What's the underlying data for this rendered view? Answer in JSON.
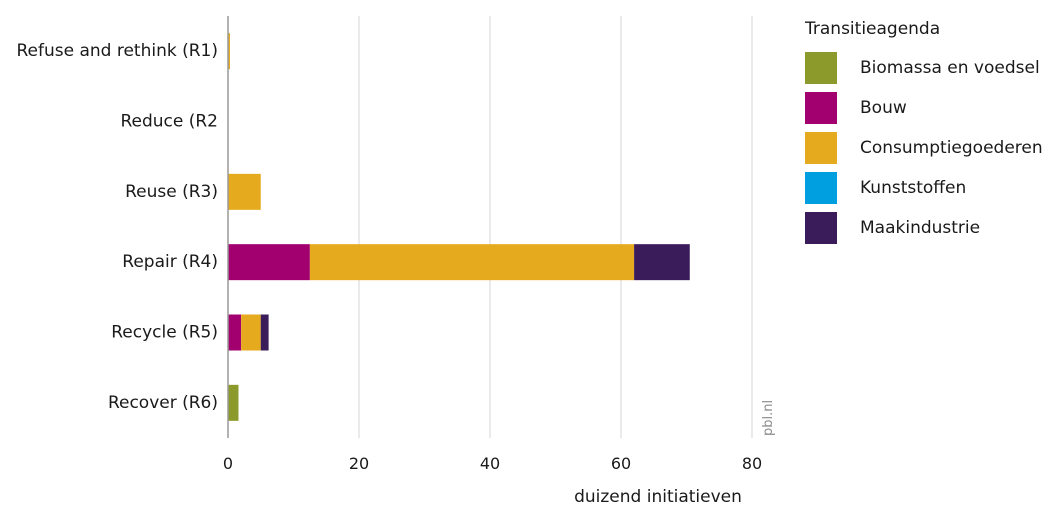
{
  "chart_data": {
    "type": "bar",
    "orientation": "horizontal",
    "stacked": true,
    "categories": [
      "Refuse and rethink (R1)",
      "Reduce (R2",
      "Reuse (R3)",
      "Repair (R4)",
      "Recycle (R5)",
      "Recover (R6)"
    ],
    "series": [
      {
        "name": "Biomassa en voedsel",
        "color": "#8b9a2a",
        "values": [
          0,
          0,
          0,
          0,
          0,
          1.6
        ]
      },
      {
        "name": "Bouw",
        "color": "#a3006f",
        "values": [
          0,
          0,
          0,
          12.5,
          2.0,
          0
        ]
      },
      {
        "name": "Consumptiegoederen",
        "color": "#e6aa1e",
        "values": [
          0.3,
          0,
          5.0,
          49.5,
          3.0,
          0
        ]
      },
      {
        "name": "Kunststoffen",
        "color": "#009fe0",
        "values": [
          0,
          0,
          0,
          0,
          0,
          0
        ]
      },
      {
        "name": "Maakindustrie",
        "color": "#3b1c5a",
        "values": [
          0,
          0,
          0,
          8.5,
          1.2,
          0
        ]
      }
    ],
    "xlim": [
      0,
      80
    ],
    "xticks": [
      "0",
      "20",
      "40",
      "60",
      "80"
    ],
    "xlabel": "duizend initiatieven",
    "legend_title": "Transitieagenda",
    "legend_position": "right",
    "grid": "vertical",
    "watermark": "pbl.nl"
  }
}
